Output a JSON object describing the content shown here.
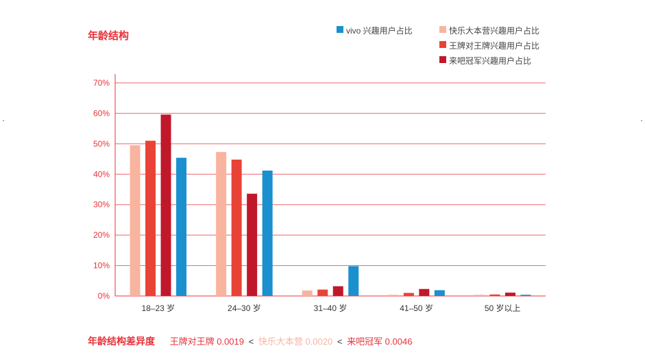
{
  "chart_data": {
    "type": "bar",
    "title": "年龄结构",
    "categories": [
      "18–23 岁",
      "24–30 岁",
      "31–40 岁",
      "41–50 岁",
      "50 岁以上"
    ],
    "yticks": [
      "0%",
      "10%",
      "20%",
      "30%",
      "40%",
      "50%",
      "60%",
      "70%"
    ],
    "ylim": [
      0,
      70
    ],
    "grid": true,
    "legend_position": "top-right",
    "series": [
      {
        "name": "快乐大本营兴趣用户占比",
        "color": "#f8b49f",
        "values": [
          49.5,
          47.3,
          1.8,
          0.4,
          0.4
        ]
      },
      {
        "name": "王牌对王牌兴趣用户占比",
        "color": "#e84336",
        "values": [
          51.0,
          44.8,
          2.1,
          1.0,
          0.5
        ]
      },
      {
        "name": "来吧冠军兴趣用户占比",
        "color": "#c0182a",
        "values": [
          59.6,
          33.6,
          3.2,
          2.3,
          1.1
        ]
      },
      {
        "name": "vivo 兴趣用户占比",
        "color": "#1a90cf",
        "values": [
          45.4,
          41.2,
          9.8,
          1.9,
          0.4
        ]
      }
    ]
  },
  "legend": {
    "vivo": "vivo 兴趣用户占比",
    "happy": "快乐大本营兴趣用户占比",
    "ace": "王牌对王牌兴趣用户占比",
    "champion": "来吧冠军兴趣用户占比"
  },
  "footer": {
    "title": "年龄结构差异度",
    "item1": "王牌对王牌 0.0019",
    "sep1": "<",
    "item2": "快乐大本营 0.0020",
    "sep2": "<",
    "item3": "来吧冠军 0.0046"
  },
  "colors": {
    "accent": "#e8323a",
    "grid": "#e8323a",
    "happy": "#f8b49f",
    "ace": "#e84336",
    "champion": "#c0182a",
    "vivo": "#1a90cf"
  }
}
